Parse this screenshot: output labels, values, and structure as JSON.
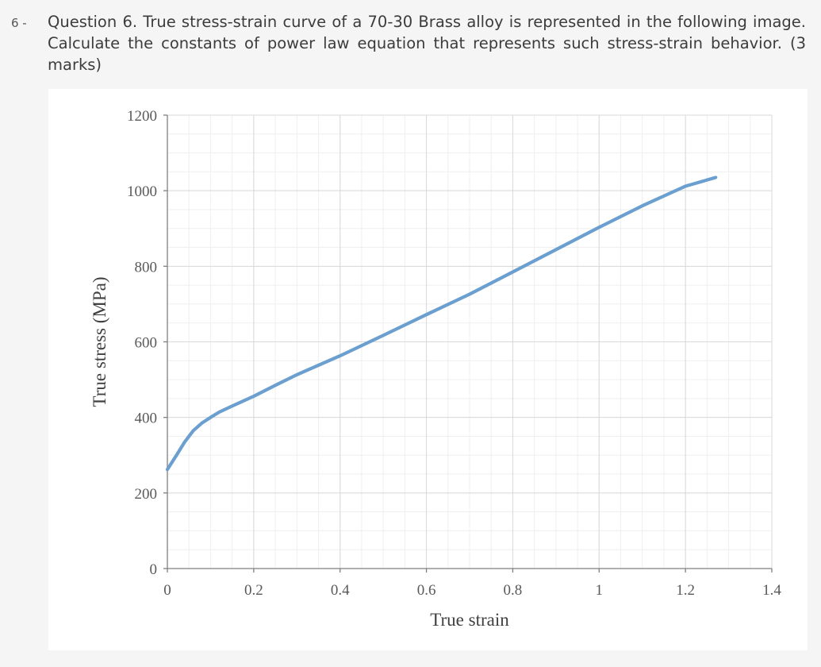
{
  "question": {
    "number": "6 -",
    "text": "Question 6. True stress-strain curve of a 70-30 Brass alloy is represented in the following image. Calculate the constants of power law equation that represents such stress-strain behavior. (3 marks)"
  },
  "colors": {
    "line": "#6a9fd0",
    "axis": "#7f7f7f",
    "grid_major": "#d9d9d9",
    "grid_minor": "#efefef",
    "background": "#ffffff"
  },
  "chart_data": {
    "type": "line",
    "title": "",
    "xlabel": "True strain",
    "ylabel": "True stress (MPa)",
    "xlim": [
      0,
      1.4
    ],
    "ylim": [
      0,
      1200
    ],
    "grid": true,
    "xticks": [
      "0",
      "0.2",
      "0.4",
      "0.6",
      "0.8",
      "1",
      "1.2",
      "1.4"
    ],
    "yticks": [
      "0",
      "200",
      "400",
      "600",
      "800",
      "1000",
      "1200"
    ],
    "series": [
      {
        "x": [
          0,
          0.02,
          0.04,
          0.06,
          0.08,
          0.1,
          0.12,
          0.15,
          0.2,
          0.25,
          0.3,
          0.4,
          0.5,
          0.6,
          0.7,
          0.8,
          0.9,
          1.0,
          1.1,
          1.2,
          1.27
        ],
        "y": [
          262,
          298,
          335,
          365,
          385,
          400,
          414,
          430,
          456,
          485,
          513,
          563,
          617,
          672,
          726,
          785,
          844,
          903,
          960,
          1012,
          1035
        ]
      }
    ]
  }
}
